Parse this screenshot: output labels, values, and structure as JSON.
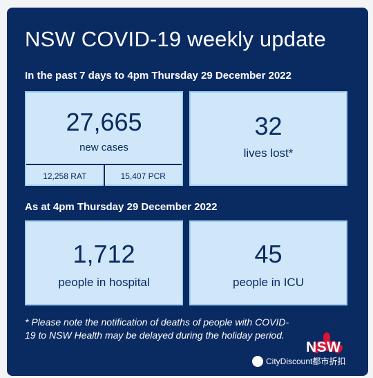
{
  "header": {
    "title": "NSW COVID-19 weekly update"
  },
  "period1": {
    "subtitle": "In the past 7 days to 4pm Thursday 29 December 2022",
    "new_cases": {
      "value": "27,665",
      "label": "new cases",
      "rat": "12,258  RAT",
      "pcr": "15,407 PCR"
    },
    "lives_lost": {
      "value": "32",
      "label": "lives lost*"
    }
  },
  "period2": {
    "subtitle": "As at 4pm Thursday 29 December 2022",
    "hospital": {
      "value": "1,712",
      "label": "people in hospital"
    },
    "icu": {
      "value": "45",
      "label": "people in ICU"
    }
  },
  "footnote": "* Please note the notification of deaths of people with COVID-19 to NSW Health may be delayed during the holiday period.",
  "logo": {
    "text": "NSW"
  },
  "watermark": {
    "text": "CityDiscount都市折扣"
  },
  "colors": {
    "background": "#0a2a62",
    "box_fill": "#cfe7f8",
    "box_border": "#9fd0f0",
    "logo_red": "#d7153a"
  }
}
